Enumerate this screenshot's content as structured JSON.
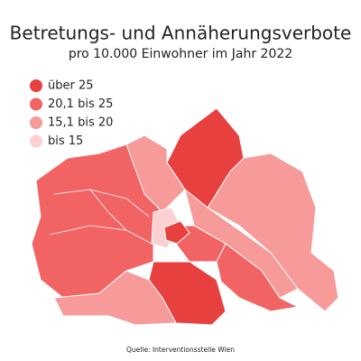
{
  "title": "Betretungs- und Annäherungsverbote",
  "subtitle": "pro 10.000 Einwohner im Jahr 2022",
  "legend": [
    {
      "label": "über 25",
      "color": "#e8403f"
    },
    {
      "label": "20,1 bis 25",
      "color": "#f26464"
    },
    {
      "label": "15,1 bis 20",
      "color": "#f79a9a"
    },
    {
      "label": "bis 15",
      "color": "#fbd0d0"
    }
  ],
  "source": "Quelle: Interventionsstelle Wien"
}
